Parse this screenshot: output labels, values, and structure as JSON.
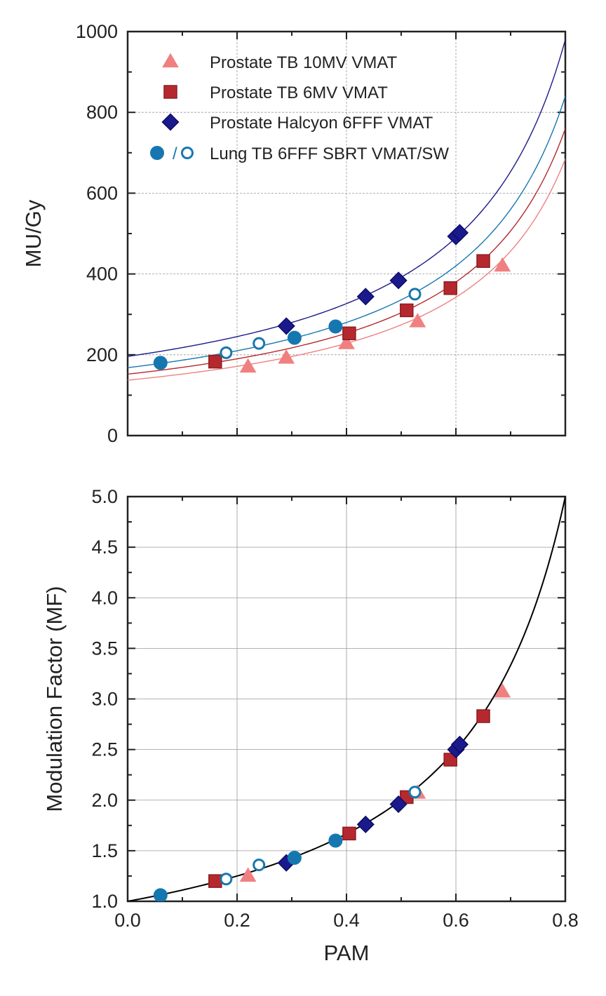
{
  "colors": {
    "tb10mv": "#f08080",
    "tb6mv": "#b5292e",
    "halcyon": "#1a1a8c",
    "lung": "#1677b0",
    "mf_fit": "#000000"
  },
  "chart_data": [
    {
      "type": "scatter",
      "ylabel": "MU/Gy",
      "xlabel": "",
      "xlim": [
        0,
        0.8
      ],
      "ylim": [
        0,
        1000
      ],
      "yticks": [
        0,
        200,
        400,
        600,
        800,
        1000
      ],
      "ytick_labels": [
        "0",
        "200",
        "400",
        "600",
        "800",
        "1000"
      ],
      "xticks": [
        0,
        0.2,
        0.4,
        0.6,
        0.8
      ],
      "grid": true,
      "legend_position": "top-left",
      "legend": [
        {
          "label": "Prostate TB 10MV VMAT",
          "marker": "triangle",
          "series": "tb10mv"
        },
        {
          "label": "Prostate TB 6MV VMAT",
          "marker": "square",
          "series": "tb6mv"
        },
        {
          "label": "Prostate Halcyon 6FFF VMAT",
          "marker": "diamond",
          "series": "halcyon"
        },
        {
          "label": "Lung TB 6FFF SBRT VMAT/SW",
          "marker": "circle-pair",
          "series": "lung",
          "separator": "/"
        }
      ],
      "series": [
        {
          "name": "Prostate TB 10MV VMAT",
          "key": "tb10mv",
          "marker": "triangle",
          "fit_intercept": 137,
          "x": [
            0.22,
            0.29,
            0.4,
            0.53,
            0.685
          ],
          "y": [
            170,
            192,
            228,
            282,
            420
          ]
        },
        {
          "name": "Prostate TB 6MV VMAT",
          "key": "tb6mv",
          "marker": "square",
          "fit_intercept": 152,
          "x": [
            0.16,
            0.405,
            0.51,
            0.59,
            0.65
          ],
          "y": [
            183,
            253,
            310,
            365,
            432
          ]
        },
        {
          "name": "Prostate Halcyon 6FFF VMAT",
          "key": "halcyon",
          "marker": "diamond",
          "fit_intercept": 196,
          "x": [
            0.29,
            0.435,
            0.495,
            0.6,
            0.607
          ],
          "y": [
            271,
            344,
            384,
            493,
            502
          ]
        },
        {
          "name": "Lung TB 6FFF SBRT VMAT",
          "key": "lung",
          "marker": "circle",
          "fit_intercept": 168,
          "x": [
            0.06,
            0.305,
            0.38
          ],
          "y": [
            180,
            242,
            270
          ]
        },
        {
          "name": "Lung TB 6FFF SBRT SW",
          "key": "lung",
          "marker": "circle-open",
          "fit_intercept": null,
          "x": [
            0.18,
            0.24,
            0.525
          ],
          "y": [
            205,
            228,
            350
          ]
        }
      ]
    },
    {
      "type": "scatter",
      "xlabel": "PAM",
      "ylabel": "Modulation Factor (MF)",
      "xlim": [
        0,
        0.8
      ],
      "ylim": [
        1.0,
        5.0
      ],
      "xticks": [
        0,
        0.2,
        0.4,
        0.6,
        0.8
      ],
      "xtick_labels": [
        "0.0",
        "0.2",
        "0.4",
        "0.6",
        "0.8"
      ],
      "yticks": [
        1.0,
        1.5,
        2.0,
        2.5,
        3.0,
        3.5,
        4.0,
        4.5,
        5.0
      ],
      "ytick_labels": [
        "1.0",
        "1.5",
        "2.0",
        "2.5",
        "3.0",
        "3.5",
        "4.0",
        "4.5",
        "5.0"
      ],
      "grid": true,
      "fit": {
        "formula": "1/(1-PAM)",
        "x_range": [
          0,
          0.8
        ]
      },
      "series": [
        {
          "name": "Prostate TB 10MV VMAT",
          "key": "tb10mv",
          "marker": "triangle",
          "x": [
            0.22,
            0.53,
            0.685
          ],
          "y": [
            1.25,
            2.07,
            3.07
          ]
        },
        {
          "name": "Prostate TB 6MV VMAT",
          "key": "tb6mv",
          "marker": "square",
          "x": [
            0.16,
            0.405,
            0.51,
            0.59,
            0.65
          ],
          "y": [
            1.2,
            1.67,
            2.03,
            2.4,
            2.83
          ]
        },
        {
          "name": "Prostate Halcyon 6FFF VMAT",
          "key": "halcyon",
          "marker": "diamond",
          "x": [
            0.29,
            0.435,
            0.495,
            0.6,
            0.607
          ],
          "y": [
            1.38,
            1.76,
            1.96,
            2.5,
            2.55
          ]
        },
        {
          "name": "Lung TB 6FFF SBRT VMAT",
          "key": "lung",
          "marker": "circle",
          "x": [
            0.06,
            0.305,
            0.38
          ],
          "y": [
            1.06,
            1.43,
            1.6
          ]
        },
        {
          "name": "Lung TB 6FFF SBRT SW",
          "key": "lung",
          "marker": "circle-open",
          "x": [
            0.18,
            0.24,
            0.525
          ],
          "y": [
            1.22,
            1.36,
            2.08
          ]
        }
      ]
    }
  ]
}
